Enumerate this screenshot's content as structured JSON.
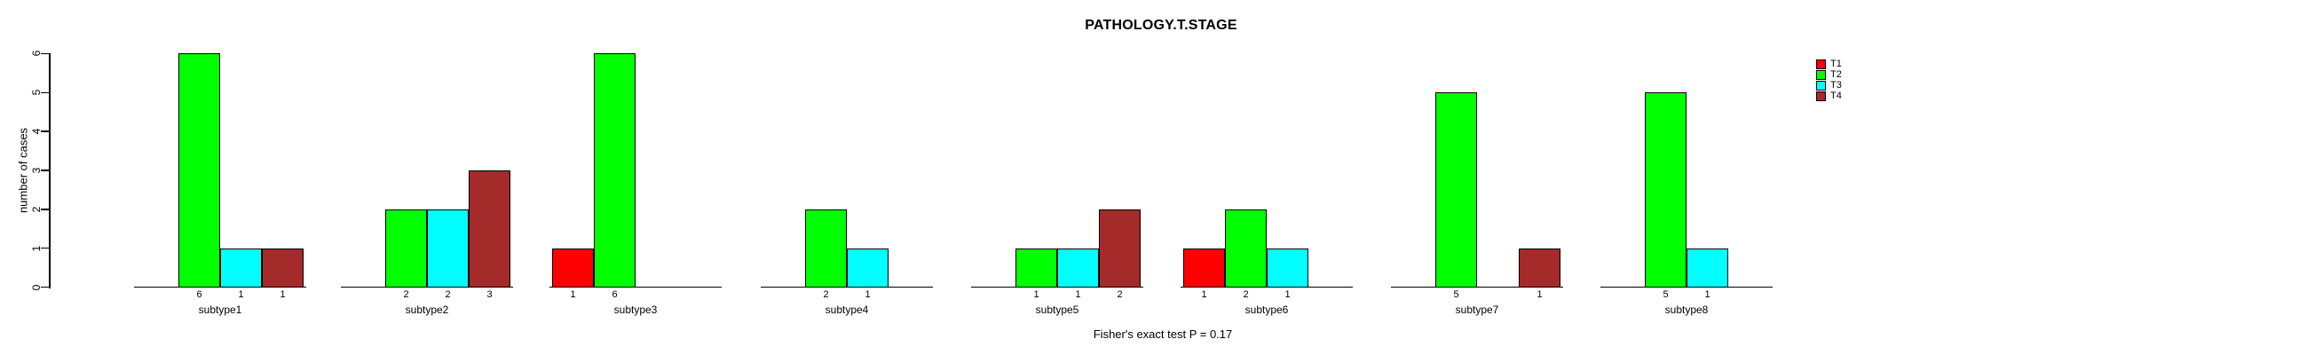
{
  "title": "PATHOLOGY.T.STAGE",
  "chart_data": {
    "type": "bar",
    "title": "PATHOLOGY.T.STAGE",
    "ylabel": "number of cases",
    "xlabel": "",
    "ylim": [
      0,
      6
    ],
    "yticks": [
      0,
      1,
      2,
      3,
      4,
      5,
      6
    ],
    "grid": false,
    "grouped": true,
    "categories": [
      "subtype1",
      "subtype2",
      "subtype3",
      "subtype4",
      "subtype5",
      "subtype6",
      "subtype7",
      "subtype8"
    ],
    "series": [
      {
        "name": "T1",
        "color": "#FF0000",
        "values": [
          0,
          0,
          1,
          0,
          0,
          1,
          0,
          0
        ]
      },
      {
        "name": "T2",
        "color": "#00FF00",
        "values": [
          6,
          2,
          6,
          2,
          1,
          2,
          5,
          5
        ]
      },
      {
        "name": "T3",
        "color": "#00FFFF",
        "values": [
          1,
          2,
          0,
          1,
          1,
          1,
          0,
          1
        ]
      },
      {
        "name": "T4",
        "color": "#A52A2A",
        "values": [
          1,
          3,
          0,
          0,
          2,
          0,
          1,
          0
        ]
      }
    ],
    "bar_value_labels_shown_for_nonzero_bars": true,
    "legend": {
      "position": "top-right",
      "entries": [
        {
          "label": "T1",
          "color": "#FF0000"
        },
        {
          "label": "T2",
          "color": "#00FF00"
        },
        {
          "label": "T3",
          "color": "#00FFFF"
        },
        {
          "label": "T4",
          "color": "#A52A2A"
        }
      ]
    },
    "footnote": "Fisher's exact test P = 0.17",
    "axis_color": "#000000",
    "background_color": "#FFFFFF"
  }
}
